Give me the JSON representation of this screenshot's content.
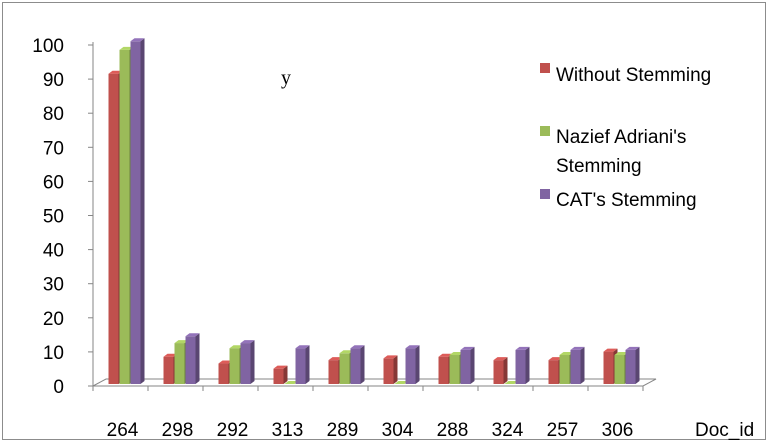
{
  "chart_data": {
    "type": "bar",
    "categories": [
      "264",
      "298",
      "292",
      "313",
      "289",
      "304",
      "288",
      "324",
      "257",
      "306"
    ],
    "series": [
      {
        "name": "Without Stemming",
        "color": "#c0504d",
        "values": [
          91,
          8,
          6,
          4.5,
          7,
          7.5,
          8,
          7,
          7,
          9.5
        ]
      },
      {
        "name": "Nazief Adriani's Stemming",
        "color": "#9bbb59",
        "values": [
          98,
          12,
          10.5,
          0,
          9,
          0,
          8.5,
          0,
          8.5,
          8.5
        ]
      },
      {
        "name": "CAT's Stemming",
        "color": "#8064a2",
        "values": [
          100.5,
          14,
          12,
          10.5,
          10.5,
          10.5,
          10,
          10,
          10,
          10
        ]
      }
    ],
    "xlabel": "Doc_id",
    "ylabel": "",
    "ylim": [
      0,
      100
    ],
    "yticks": [
      "0",
      "10",
      "20",
      "30",
      "40",
      "50",
      "60",
      "70",
      "80",
      "90",
      "100"
    ],
    "annotation": "y",
    "legend": {
      "position": "top-right",
      "entries": [
        "Without Stemming",
        "Nazief Adriani's",
        "Stemming",
        "CAT's Stemming"
      ]
    },
    "grid": false
  }
}
